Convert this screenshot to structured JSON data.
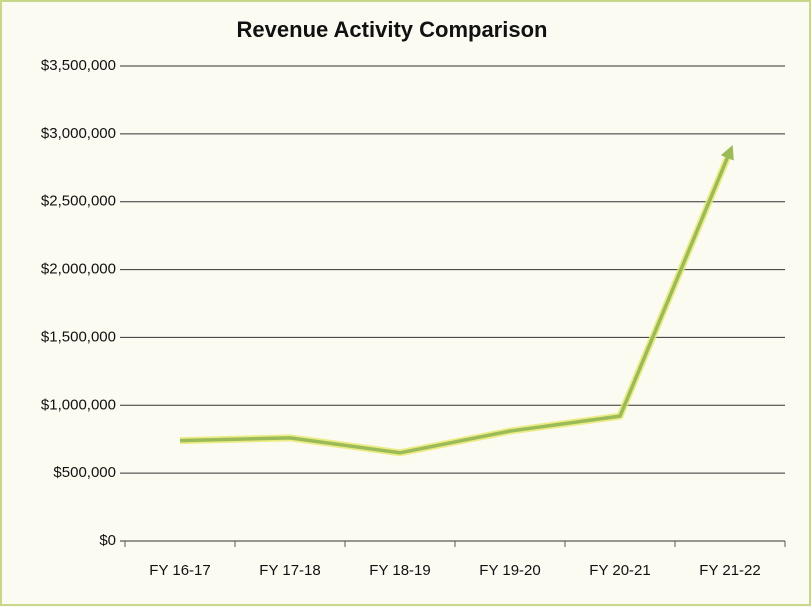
{
  "chart_data": {
    "type": "line",
    "title": "Revenue Activity Comparison",
    "categories": [
      "FY 16-17",
      "FY 17-18",
      "FY 18-19",
      "FY 19-20",
      "FY 20-21",
      "FY 21-22"
    ],
    "values": [
      740000,
      760000,
      650000,
      810000,
      920000,
      2870000
    ],
    "color": "#9bbb59",
    "ylim": [
      0,
      3500000
    ],
    "yticks": [
      {
        "value": 0,
        "label": "$0"
      },
      {
        "value": 500000,
        "label": "$500,000"
      },
      {
        "value": 1000000,
        "label": "$1,000,000"
      },
      {
        "value": 1500000,
        "label": "$1,500,000"
      },
      {
        "value": 2000000,
        "label": "$2,000,000"
      },
      {
        "value": 2500000,
        "label": "$2,500,000"
      },
      {
        "value": 3000000,
        "label": "$3,000,000"
      },
      {
        "value": 3500000,
        "label": "$3,500,000"
      }
    ],
    "grid": true
  }
}
